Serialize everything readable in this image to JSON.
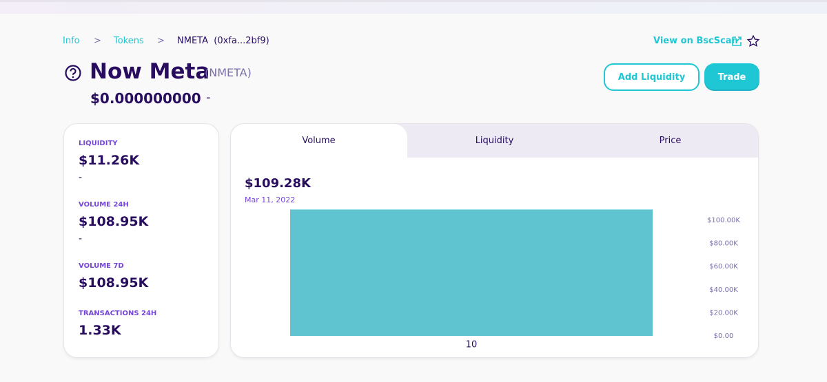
{
  "breadcrumb": {
    "items": [
      "Info",
      "Tokens"
    ],
    "current": "NMETA",
    "address": "(0xfa...2bf9)",
    "link": "View on BscScan"
  },
  "token": {
    "name": "Now Meta",
    "symbol": "(NMETA)",
    "price": "$0.000000000",
    "change": "-"
  },
  "buttons": [
    "Add Liquidity",
    "Trade"
  ],
  "stats": [
    {
      "label": "LIQUIDITY",
      "value": "$11.26K",
      "change": "-"
    },
    {
      "label": "VOLUME 24H",
      "value": "$108.95K",
      "change": "-"
    },
    {
      "label": "VOLUME 7D",
      "value": "$108.95K"
    },
    {
      "label": "TRANSACTIONS 24H",
      "value": "1.33K"
    }
  ],
  "tabs": [
    "Volume",
    "Liquidity",
    "Price"
  ],
  "chart_data": {
    "type": "bar",
    "hover_date": "Mar 11, 2022",
    "categories": [
      "10"
    ],
    "values": [
      109280
    ],
    "value_labels": [
      "$109.28K"
    ],
    "color": "#5fc4d0",
    "ylim": [
      0,
      110000
    ],
    "yticks": [
      {
        "value": 0,
        "label": "$0.00"
      },
      {
        "value": 20000,
        "label": "$20.00K"
      },
      {
        "value": 40000,
        "label": "$40.00K"
      },
      {
        "value": 60000,
        "label": "$60.00K"
      },
      {
        "value": 80000,
        "label": "$80.00K"
      },
      {
        "value": 100000,
        "label": "$100.00K"
      }
    ]
  }
}
